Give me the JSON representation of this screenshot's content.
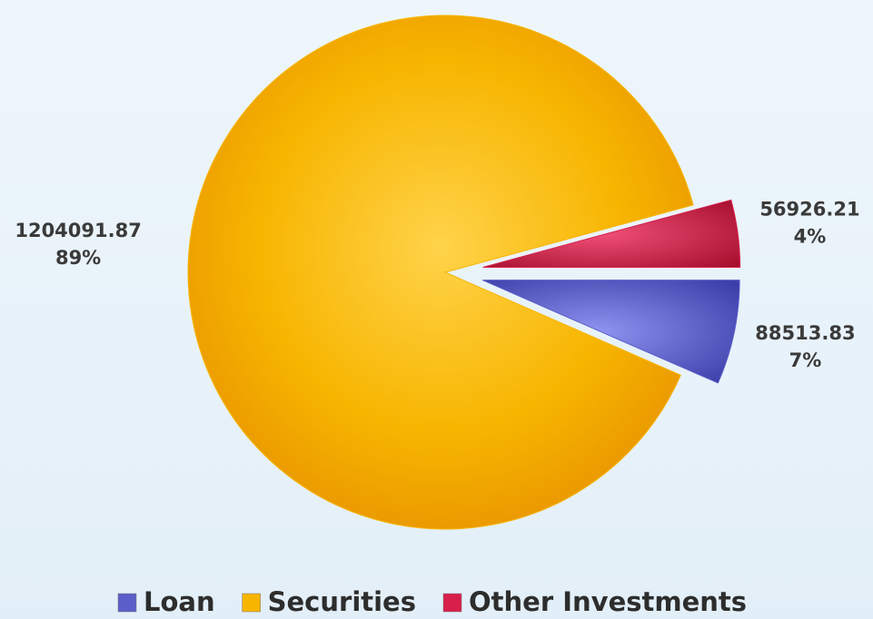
{
  "chart_data": {
    "type": "pie",
    "categories": [
      "Loan",
      "Securities",
      "Other Investments"
    ],
    "values": [
      88513.83,
      1204091.87,
      56926.21
    ],
    "percent_labels": [
      "7%",
      "89%",
      "4%"
    ],
    "colors": [
      "#5b5ec9",
      "#f7b500",
      "#d81f4b"
    ]
  }
}
